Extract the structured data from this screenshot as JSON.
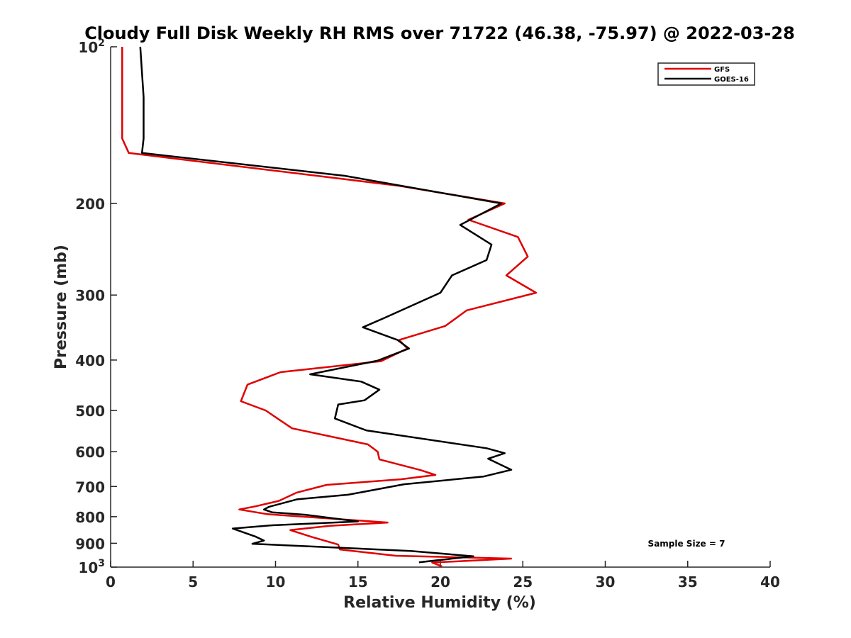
{
  "chart_data": {
    "type": "line",
    "title": "Cloudy Full Disk Weekly RH RMS over 71722 (46.38, -75.97) @ 2022-03-28",
    "xlabel": "Relative Humidity (%)",
    "ylabel": "Pressure (mb)",
    "xlim": [
      0,
      40
    ],
    "ylim": [
      100,
      1000
    ],
    "yscale": "log",
    "y_reversed": true,
    "xticks": [
      0,
      5,
      10,
      15,
      20,
      25,
      30,
      35,
      40
    ],
    "yticks": [
      {
        "value": 100,
        "label": "10",
        "sup": "2"
      },
      {
        "value": 200,
        "label": "200",
        "sup": ""
      },
      {
        "value": 300,
        "label": "300",
        "sup": ""
      },
      {
        "value": 400,
        "label": "400",
        "sup": ""
      },
      {
        "value": 500,
        "label": "500",
        "sup": ""
      },
      {
        "value": 600,
        "label": "600",
        "sup": ""
      },
      {
        "value": 700,
        "label": "700",
        "sup": ""
      },
      {
        "value": 800,
        "label": "800",
        "sup": ""
      },
      {
        "value": 900,
        "label": "900",
        "sup": ""
      },
      {
        "value": 1000,
        "label": "10",
        "sup": "3"
      }
    ],
    "legend_position": "top-right",
    "annotation": "Sample Size = 7",
    "series": [
      {
        "name": "GFS",
        "color": "#e00000",
        "points": [
          [
            0.7,
            100
          ],
          [
            0.7,
            125
          ],
          [
            0.7,
            150
          ],
          [
            1.1,
            160
          ],
          [
            17.5,
            185
          ],
          [
            23.9,
            200
          ],
          [
            21.7,
            215
          ],
          [
            24.7,
            232
          ],
          [
            25.3,
            253
          ],
          [
            24.0,
            275
          ],
          [
            25.8,
            297
          ],
          [
            21.6,
            321
          ],
          [
            20.3,
            344
          ],
          [
            17.5,
            366
          ],
          [
            18.0,
            380
          ],
          [
            16.4,
            402
          ],
          [
            10.3,
            422
          ],
          [
            8.3,
            446
          ],
          [
            7.9,
            480
          ],
          [
            9.4,
            500
          ],
          [
            11.0,
            541
          ],
          [
            15.6,
            581
          ],
          [
            16.2,
            600
          ],
          [
            16.3,
            621
          ],
          [
            18.8,
            651
          ],
          [
            19.7,
            665
          ],
          [
            17.6,
            678
          ],
          [
            13.1,
            695
          ],
          [
            11.3,
            719
          ],
          [
            10.2,
            746
          ],
          [
            8.8,
            764
          ],
          [
            7.8,
            775
          ],
          [
            9.5,
            791
          ],
          [
            16.8,
            821
          ],
          [
            13.3,
            833
          ],
          [
            10.9,
            849
          ],
          [
            12.2,
            875
          ],
          [
            13.8,
            905
          ],
          [
            13.9,
            925
          ],
          [
            17.3,
            951
          ],
          [
            24.3,
            963
          ],
          [
            19.5,
            980
          ],
          [
            20.1,
            997
          ]
        ]
      },
      {
        "name": "GOES-16",
        "color": "#000000",
        "points": [
          [
            1.8,
            100
          ],
          [
            2.0,
            125
          ],
          [
            2.0,
            150
          ],
          [
            1.9,
            160
          ],
          [
            14.2,
            177
          ],
          [
            23.7,
            200
          ],
          [
            21.2,
            220
          ],
          [
            23.1,
            240
          ],
          [
            22.8,
            257
          ],
          [
            20.7,
            275
          ],
          [
            20.0,
            297
          ],
          [
            16.6,
            332
          ],
          [
            15.3,
            346
          ],
          [
            17.4,
            366
          ],
          [
            18.1,
            380
          ],
          [
            16.2,
            401
          ],
          [
            12.1,
            426
          ],
          [
            15.2,
            440
          ],
          [
            16.3,
            456
          ],
          [
            15.4,
            478
          ],
          [
            13.8,
            487
          ],
          [
            13.6,
            518
          ],
          [
            15.5,
            546
          ],
          [
            22.8,
            591
          ],
          [
            23.9,
            604
          ],
          [
            22.9,
            619
          ],
          [
            24.3,
            650
          ],
          [
            22.6,
            670
          ],
          [
            17.8,
            693
          ],
          [
            14.4,
            726
          ],
          [
            11.3,
            741
          ],
          [
            9.6,
            766
          ],
          [
            9.3,
            775
          ],
          [
            9.8,
            785
          ],
          [
            11.8,
            793
          ],
          [
            15.0,
            817
          ],
          [
            9.8,
            831
          ],
          [
            7.4,
            843
          ],
          [
            8.8,
            874
          ],
          [
            9.3,
            889
          ],
          [
            8.6,
            902
          ],
          [
            18.2,
            931
          ],
          [
            22.0,
            953
          ],
          [
            18.7,
            979
          ]
        ]
      }
    ]
  }
}
